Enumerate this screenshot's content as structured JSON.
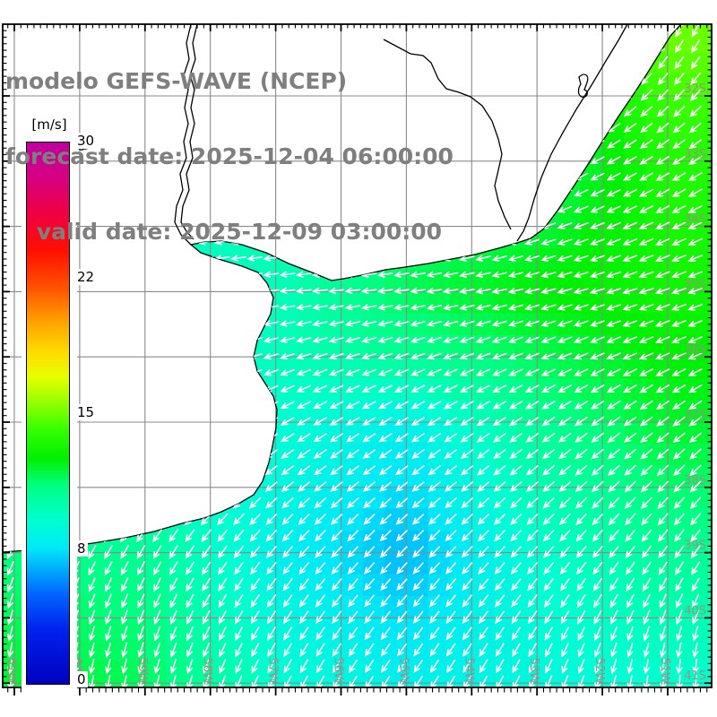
{
  "title": {
    "line1": "modelo GEFS-WAVE (NCEP)",
    "line2": "forecast date: 2025-12-04 06:00:00",
    "line3": "    valid date: 2025-12-09 03:00:00",
    "color": "#7f7f7f"
  },
  "colorbar": {
    "unit_label": "[m/s]",
    "min": 0,
    "max": 30,
    "tick_labels": [
      "30",
      "22",
      "15",
      "8",
      "0"
    ],
    "stops": [
      {
        "v": 0,
        "c": "#0000be"
      },
      {
        "v": 3,
        "c": "#0022ee"
      },
      {
        "v": 5,
        "c": "#0066ff"
      },
      {
        "v": 7.5,
        "c": "#00e8f8"
      },
      {
        "v": 9,
        "c": "#00ffd0"
      },
      {
        "v": 11,
        "c": "#00ff80"
      },
      {
        "v": 12.5,
        "c": "#00f000"
      },
      {
        "v": 14,
        "c": "#30ff00"
      },
      {
        "v": 15.5,
        "c": "#90ff00"
      },
      {
        "v": 17,
        "c": "#e8ff00"
      },
      {
        "v": 18.5,
        "c": "#ffd800"
      },
      {
        "v": 20,
        "c": "#ffa500"
      },
      {
        "v": 22,
        "c": "#ff5000"
      },
      {
        "v": 24,
        "c": "#ff1000"
      },
      {
        "v": 26,
        "c": "#f00040"
      },
      {
        "v": 28,
        "c": "#d80080"
      },
      {
        "v": 30,
        "c": "#be00a0"
      }
    ]
  },
  "map": {
    "lat_tick_labels": [
      "32S",
      "33S",
      "34S",
      "35S",
      "36S",
      "37S",
      "38S",
      "39S",
      "40S",
      "41S"
    ],
    "lon_tick_labels": [
      "61W",
      "60W",
      "59W",
      "58W",
      "57W",
      "56W",
      "55W",
      "54W",
      "53W",
      "52W",
      "51W"
    ],
    "lat_values": [
      -32,
      -33,
      -34,
      -35,
      -36,
      -37,
      -38,
      -39,
      -40,
      -41
    ],
    "lon_values": [
      -61,
      -60,
      -59,
      -58,
      -57,
      -56,
      -55,
      -54,
      -53,
      -52,
      -51
    ],
    "grid_color": "#8a8a8a",
    "axis_label_color": "#9c8f85",
    "coast_color": "#000000",
    "arrow_color": "#ffffff",
    "frame_color": "#000000",
    "wind_field": {
      "units": "m/s",
      "lons": [
        -61,
        -59,
        -57,
        -55,
        -53,
        -51
      ],
      "lats": [
        -31,
        -33,
        -35,
        -36,
        -37,
        -39,
        -41
      ],
      "speed": [
        [
          10,
          10,
          10,
          10.5,
          12,
          15
        ],
        [
          9.5,
          9.5,
          10,
          11,
          11,
          13.5
        ],
        [
          9,
          9,
          9.5,
          11.5,
          12.5,
          13
        ],
        [
          9,
          9,
          9.5,
          10.5,
          11.5,
          12.5
        ],
        [
          9,
          9,
          9,
          8,
          10.5,
          12
        ],
        [
          11,
          10.5,
          8,
          6.5,
          9,
          10.5
        ],
        [
          12,
          11.5,
          9,
          8,
          8.5,
          9
        ]
      ],
      "bearing_deg": [
        [
          250,
          250,
          250,
          248,
          240,
          208
        ],
        [
          255,
          255,
          255,
          252,
          246,
          238
        ],
        [
          266,
          266,
          265,
          262,
          256,
          250
        ],
        [
          256,
          255,
          253,
          250,
          248,
          246
        ],
        [
          238,
          239,
          240,
          238,
          236,
          233
        ],
        [
          206,
          210,
          220,
          224,
          222,
          216
        ],
        [
          186,
          192,
          206,
          214,
          205,
          184
        ]
      ]
    }
  }
}
